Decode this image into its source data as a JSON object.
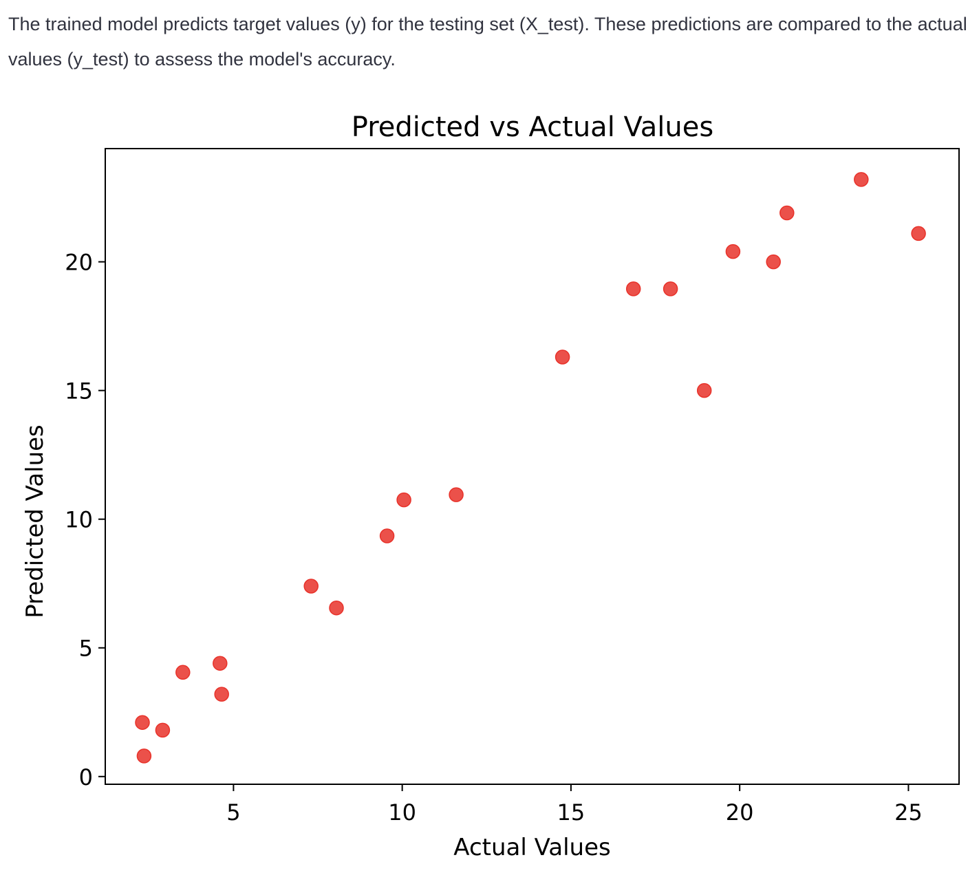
{
  "description": {
    "text": "The trained model predicts target values (y) for the testing set (X_test). These predictions are compared to the actual values (y_test) to assess the model's accuracy."
  },
  "chart_data": {
    "type": "scatter",
    "title": "Predicted vs Actual Values",
    "xlabel": "Actual Values",
    "ylabel": "Predicted Values",
    "xlim": [
      1.2,
      26.5
    ],
    "ylim": [
      -0.3,
      24.4
    ],
    "xticks": [
      5,
      10,
      15,
      20,
      25
    ],
    "yticks": [
      0,
      5,
      10,
      15,
      20
    ],
    "grid": false,
    "point_color": "#e8322a",
    "series": [
      {
        "x": [
          2.3,
          2.35,
          2.9,
          3.5,
          4.6,
          4.65,
          7.3,
          8.05,
          9.55,
          10.05,
          11.6,
          14.75,
          16.85,
          17.95,
          18.95,
          19.8,
          21.0,
          21.4,
          23.6,
          25.3
        ],
        "y": [
          2.1,
          0.8,
          1.8,
          4.05,
          4.4,
          3.2,
          7.4,
          6.55,
          9.35,
          10.75,
          10.95,
          16.3,
          18.95,
          18.95,
          15.0,
          20.4,
          20.0,
          21.9,
          23.2,
          21.1
        ]
      }
    ]
  }
}
